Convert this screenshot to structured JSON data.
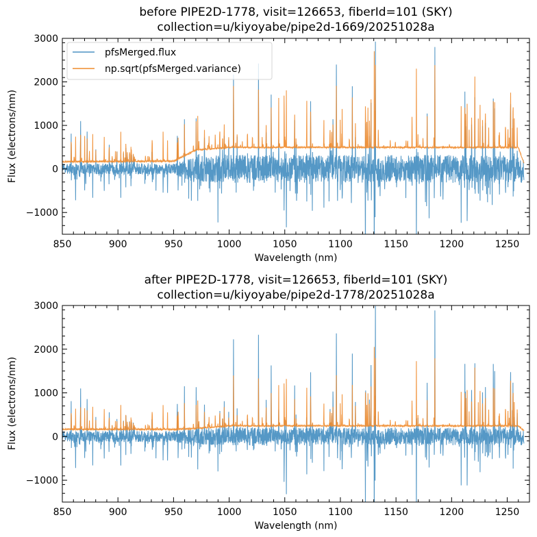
{
  "colors": {
    "flux": "#4c92c3",
    "variance": "#ef8b2c",
    "axes": "#000000"
  },
  "chart_data": [
    {
      "type": "line",
      "title_line1": "before PIPE2D-1778, visit=126653, fiberId=101 (SKY)",
      "title_line2": "collection=u/kiyoyabe/pipe2d-1669/20251028a",
      "xlabel": "Wavelength (nm)",
      "ylabel": "Flux (electrons/nm)",
      "xlim": [
        850,
        1270
      ],
      "ylim": [
        -1500,
        3000
      ],
      "xticks": [
        850,
        900,
        950,
        1000,
        1050,
        1100,
        1150,
        1200,
        1250
      ],
      "xtick_labels": [
        "850",
        "900",
        "950",
        "1000",
        "1050",
        "1100",
        "1150",
        "1200",
        "1250"
      ],
      "yticks": [
        -1000,
        0,
        1000,
        2000,
        3000
      ],
      "ytick_labels": [
        "−1000",
        "0",
        "1000",
        "2000",
        "3000"
      ],
      "legend": {
        "placement": "top-left",
        "entries": [
          "pfsMerged.flux",
          "np.sqrt(pfsMerged.variance)"
        ]
      },
      "series": [
        {
          "name": "pfsMerged.flux",
          "continuum": [
            [
              850,
              0
            ],
            [
              970,
              0
            ],
            [
              1265,
              0
            ]
          ],
          "noise": [
            [
              850,
              120
            ],
            [
              950,
              130
            ],
            [
              970,
              320
            ],
            [
              1265,
              320
            ]
          ]
        },
        {
          "name": "np.sqrt(pfsMerged.variance)",
          "baseline": [
            [
              850,
              150
            ],
            [
              950,
              165
            ],
            [
              970,
              420
            ],
            [
              1000,
              480
            ],
            [
              1260,
              480
            ],
            [
              1265,
              120
            ]
          ]
        }
      ],
      "seed": 7
    },
    {
      "type": "line",
      "title_line1": "after PIPE2D-1778, visit=126653, fiberId=101 (SKY)",
      "title_line2": "collection=u/kiyoyabe/pipe2d-1778/20251028a",
      "xlabel": "Wavelength (nm)",
      "ylabel": "Flux (electrons/nm)",
      "xlim": [
        850,
        1270
      ],
      "ylim": [
        -1500,
        3000
      ],
      "xticks": [
        850,
        900,
        950,
        1000,
        1050,
        1100,
        1150,
        1200,
        1250
      ],
      "xtick_labels": [
        "850",
        "900",
        "950",
        "1000",
        "1050",
        "1100",
        "1150",
        "1200",
        "1250"
      ],
      "yticks": [
        -1000,
        0,
        1000,
        2000,
        3000
      ],
      "ytick_labels": [
        "−1000",
        "0",
        "1000",
        "2000",
        "3000"
      ],
      "legend": null,
      "series": [
        {
          "name": "pfsMerged.flux",
          "continuum": [
            [
              850,
              0
            ],
            [
              1265,
              0
            ]
          ],
          "noise": [
            [
              850,
              120
            ],
            [
              950,
              130
            ],
            [
              970,
              200
            ],
            [
              1265,
              200
            ]
          ]
        },
        {
          "name": "np.sqrt(pfsMerged.variance)",
          "baseline": [
            [
              850,
              150
            ],
            [
              950,
              150
            ],
            [
              970,
              170
            ],
            [
              1000,
              230
            ],
            [
              1260,
              230
            ],
            [
              1265,
              120
            ]
          ]
        }
      ],
      "seed": 7
    }
  ]
}
